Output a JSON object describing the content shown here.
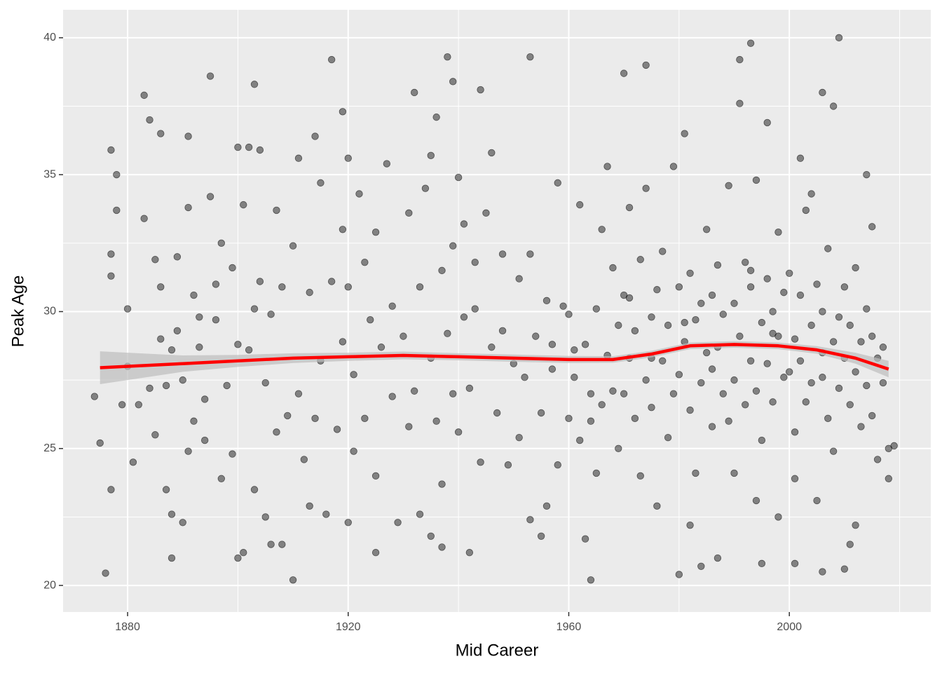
{
  "chart_data": {
    "type": "scatter",
    "x_label": "Mid Career",
    "y_label": "Peak Age",
    "xlim": [
      1868.3,
      2025.65
    ],
    "ylim": [
      19.03,
      41.02
    ],
    "xticks": [
      1880,
      1920,
      1960,
      2000
    ],
    "yticks": [
      20,
      25,
      30,
      35,
      40
    ],
    "x_minor_ticks": [
      1900,
      1940,
      1980,
      2020
    ],
    "y_minor_ticks": [
      22.5,
      27.5,
      32.5,
      37.5
    ],
    "grid": true,
    "point_color": "#000000",
    "x": [
      1876,
      1877,
      1878,
      1875,
      1874,
      1877,
      1883,
      1884,
      1886,
      1891,
      1895,
      1903,
      1900,
      1902,
      1904,
      1910,
      1917,
      1919,
      1920,
      1932,
      1938,
      1939,
      1944,
      1953,
      1970,
      1974,
      1991,
      1993,
      2009,
      2008,
      2006,
      1964,
      1980,
      1987,
      1900,
      1901,
      1890,
      1920,
      1925,
      1942,
      1935,
      2001,
      1995,
      2006,
      2010,
      2011,
      1937,
      1877,
      1877,
      1878,
      1879,
      1880,
      1880,
      1881,
      1882,
      1883,
      1884,
      1885,
      1885,
      1886,
      1886,
      1887,
      1887,
      1888,
      1888,
      1888,
      1889,
      1889,
      1890,
      1891,
      1891,
      1892,
      1893,
      1894,
      1894,
      1895,
      1896,
      1897,
      1897,
      1898,
      1899,
      1899,
      1896,
      1892,
      1893,
      1901,
      1902,
      1903,
      1904,
      1905,
      1905,
      1906,
      1907,
      1907,
      1908,
      1909,
      1908,
      1906,
      1903,
      1900,
      1910,
      1911,
      1912,
      1913,
      1914,
      1915,
      1915,
      1916,
      1917,
      1918,
      1919,
      1919,
      1911,
      1914,
      1913,
      1920,
      1921,
      1922,
      1923,
      1924,
      1925,
      1925,
      1926,
      1927,
      1928,
      1928,
      1929,
      1923,
      1921,
      1930,
      1931,
      1931,
      1932,
      1933,
      1933,
      1934,
      1935,
      1936,
      1937,
      1937,
      1938,
      1939,
      1939,
      1935,
      1936,
      1940,
      1940,
      1941,
      1942,
      1943,
      1944,
      1945,
      1946,
      1946,
      1947,
      1948,
      1948,
      1949,
      1943,
      1941,
      1950,
      1951,
      1951,
      1952,
      1953,
      1953,
      1954,
      1955,
      1956,
      1956,
      1957,
      1958,
      1958,
      1959,
      1957,
      1955,
      1960,
      1960,
      1961,
      1962,
      1962,
      1963,
      1963,
      1964,
      1965,
      1965,
      1966,
      1966,
      1967,
      1967,
      1968,
      1968,
      1969,
      1969,
      1961,
      1964,
      1970,
      1970,
      1971,
      1971,
      1972,
      1972,
      1973,
      1973,
      1974,
      1974,
      1975,
      1975,
      1976,
      1976,
      1977,
      1977,
      1978,
      1978,
      1979,
      1979,
      1971,
      1975,
      1980,
      1980,
      1981,
      1981,
      1982,
      1982,
      1983,
      1983,
      1984,
      1984,
      1985,
      1985,
      1986,
      1986,
      1987,
      1987,
      1988,
      1988,
      1989,
      1989,
      1982,
      1984,
      1981,
      1986,
      1990,
      1990,
      1991,
      1991,
      1992,
      1992,
      1993,
      1993,
      1994,
      1994,
      1995,
      1995,
      1996,
      1996,
      1997,
      1997,
      1998,
      1998,
      1999,
      1999,
      1990,
      1994,
      1996,
      1997,
      1993,
      1998,
      2000,
      2000,
      2001,
      2001,
      2002,
      2002,
      2003,
      2003,
      2004,
      2004,
      2005,
      2005,
      2006,
      2006,
      2007,
      2007,
      2008,
      2008,
      2009,
      2009,
      2002,
      2004,
      2001,
      2006,
      2010,
      2010,
      2011,
      2011,
      2012,
      2012,
      2013,
      2013,
      2014,
      2014,
      2015,
      2015,
      2016,
      2016,
      2017,
      2018,
      2019,
      2018,
      2014,
      2012,
      2015,
      2017
    ],
    "values": [
      20.45,
      35.9,
      35.0,
      25.2,
      26.9,
      23.5,
      37.9,
      37.0,
      36.5,
      36.4,
      38.6,
      38.3,
      36.0,
      36.0,
      35.9,
      20.2,
      39.2,
      37.3,
      35.6,
      38.0,
      39.3,
      38.4,
      38.1,
      39.3,
      38.7,
      39.0,
      39.2,
      39.8,
      40.0,
      37.5,
      38.0,
      20.2,
      20.4,
      21.0,
      21.0,
      21.2,
      22.3,
      22.3,
      21.2,
      21.2,
      21.8,
      20.8,
      20.8,
      20.5,
      20.6,
      21.5,
      21.4,
      32.1,
      31.3,
      33.7,
      26.6,
      30.1,
      28.0,
      24.5,
      26.6,
      33.4,
      27.2,
      31.9,
      25.5,
      29.0,
      30.9,
      23.5,
      27.3,
      28.6,
      22.6,
      21.0,
      32.0,
      29.3,
      27.5,
      33.8,
      24.9,
      30.6,
      28.7,
      26.8,
      25.3,
      34.2,
      29.7,
      32.5,
      23.9,
      27.3,
      31.6,
      24.8,
      31.0,
      26.0,
      29.8,
      33.9,
      28.6,
      23.5,
      31.1,
      22.5,
      27.4,
      29.9,
      33.7,
      25.6,
      30.9,
      26.2,
      21.5,
      21.5,
      30.1,
      28.8,
      32.4,
      27.0,
      24.6,
      30.7,
      26.1,
      34.7,
      28.2,
      22.6,
      31.1,
      25.7,
      33.0,
      28.9,
      35.6,
      36.4,
      22.9,
      30.9,
      27.7,
      34.3,
      26.1,
      29.7,
      32.9,
      24.0,
      28.7,
      35.4,
      30.2,
      26.9,
      22.3,
      31.8,
      24.9,
      29.1,
      33.6,
      25.8,
      27.1,
      30.9,
      22.6,
      34.5,
      28.3,
      26.0,
      31.5,
      23.7,
      29.2,
      27.0,
      32.4,
      35.7,
      37.1,
      34.9,
      25.6,
      29.8,
      27.2,
      31.8,
      24.5,
      33.6,
      28.7,
      35.8,
      26.3,
      32.1,
      29.3,
      24.4,
      30.1,
      33.2,
      28.1,
      31.2,
      25.4,
      27.6,
      32.1,
      22.4,
      29.1,
      26.3,
      30.4,
      22.9,
      27.9,
      34.7,
      24.4,
      30.2,
      28.8,
      21.8,
      29.9,
      26.1,
      27.6,
      33.9,
      25.3,
      28.8,
      21.7,
      27.0,
      30.1,
      24.1,
      26.6,
      33.0,
      28.4,
      35.3,
      27.1,
      31.6,
      25.0,
      29.5,
      28.6,
      26.0,
      30.6,
      27.0,
      28.3,
      33.8,
      26.1,
      29.3,
      31.9,
      24.0,
      27.5,
      34.5,
      29.8,
      26.5,
      30.8,
      22.9,
      28.2,
      32.2,
      25.4,
      29.5,
      27.0,
      35.3,
      30.5,
      28.3,
      30.9,
      27.7,
      28.9,
      36.5,
      26.4,
      31.4,
      29.7,
      24.1,
      30.3,
      27.4,
      28.5,
      33.0,
      25.8,
      30.6,
      28.7,
      31.7,
      27.0,
      29.9,
      26.0,
      34.6,
      22.2,
      20.7,
      29.6,
      27.9,
      30.3,
      27.5,
      29.1,
      37.6,
      31.8,
      26.6,
      28.2,
      30.9,
      27.1,
      34.8,
      29.6,
      25.3,
      31.2,
      28.1,
      30.0,
      26.7,
      32.9,
      29.1,
      27.6,
      30.7,
      24.1,
      23.1,
      36.9,
      29.2,
      31.5,
      22.5,
      31.4,
      27.8,
      29.0,
      25.6,
      30.6,
      28.2,
      33.7,
      26.7,
      29.5,
      27.4,
      31.0,
      23.1,
      28.5,
      30.0,
      26.1,
      32.3,
      28.9,
      24.9,
      29.8,
      27.2,
      35.6,
      34.3,
      23.9,
      27.6,
      28.3,
      30.9,
      26.6,
      29.5,
      27.8,
      31.6,
      25.8,
      28.9,
      30.1,
      27.3,
      26.2,
      29.1,
      28.3,
      24.6,
      27.4,
      25.0,
      25.1,
      23.9,
      35.0,
      22.2,
      33.1,
      28.7
    ],
    "smooth": {
      "color": "#ff0000",
      "band_color": "#bdbdbd",
      "x": [
        1875,
        1890,
        1900,
        1910,
        1920,
        1930,
        1940,
        1950,
        1960,
        1968,
        1975,
        1982,
        1990,
        1998,
        2005,
        2012,
        2018
      ],
      "values": [
        27.95,
        28.1,
        28.2,
        28.3,
        28.35,
        28.4,
        28.35,
        28.3,
        28.25,
        28.25,
        28.45,
        28.75,
        28.8,
        28.75,
        28.6,
        28.3,
        27.9
      ],
      "lower": [
        27.35,
        27.8,
        27.98,
        28.12,
        28.2,
        28.26,
        28.22,
        28.17,
        28.12,
        28.13,
        28.33,
        28.63,
        28.68,
        28.63,
        28.46,
        28.1,
        27.6
      ],
      "upper": [
        28.55,
        28.4,
        28.42,
        28.48,
        28.5,
        28.54,
        28.48,
        28.43,
        28.38,
        28.37,
        28.57,
        28.87,
        28.92,
        28.87,
        28.74,
        28.5,
        28.2
      ]
    }
  }
}
